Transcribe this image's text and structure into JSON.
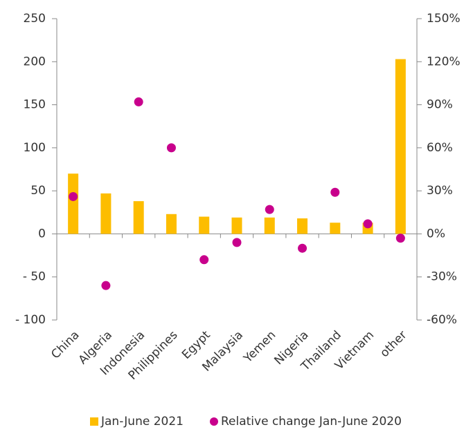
{
  "chart_data": {
    "type": "bar",
    "categories": [
      "China",
      "Algeria",
      "Indonesia",
      "Philippines",
      "Egypt",
      "Malaysia",
      "Yemen",
      "Nigeria",
      "Thailand",
      "Vietnam",
      "other"
    ],
    "series": [
      {
        "name": "Jan-June 2021",
        "type": "bar",
        "color": "#fdbd00",
        "values": [
          70,
          47,
          38,
          23,
          20,
          19,
          19,
          18,
          13,
          13,
          203
        ]
      },
      {
        "name": "Relative change Jan-June 2020",
        "type": "scatter",
        "axis": "y2",
        "color": "#c8008c",
        "values": [
          26,
          -36,
          92,
          60,
          -18,
          -6,
          17,
          -10,
          29,
          7,
          -3
        ]
      }
    ],
    "ylim": [
      -100,
      250
    ],
    "yticks": [
      {
        "value": -100,
        "label": "- 100"
      },
      {
        "value": -50,
        "label": "- 50"
      },
      0,
      50,
      100,
      150,
      200,
      250
    ],
    "y2lim": [
      -60,
      150
    ],
    "y2ticks": [
      {
        "value": -60,
        "label": "-60%"
      },
      {
        "value": -30,
        "label": "-30%"
      },
      {
        "value": 0,
        "label": "0%"
      },
      {
        "value": 30,
        "label": "30%"
      },
      {
        "value": 60,
        "label": "60%"
      },
      {
        "value": 90,
        "label": "90%"
      },
      {
        "value": 120,
        "label": "120%"
      },
      {
        "value": 150,
        "label": "150%"
      }
    ],
    "legend": "bottom"
  }
}
